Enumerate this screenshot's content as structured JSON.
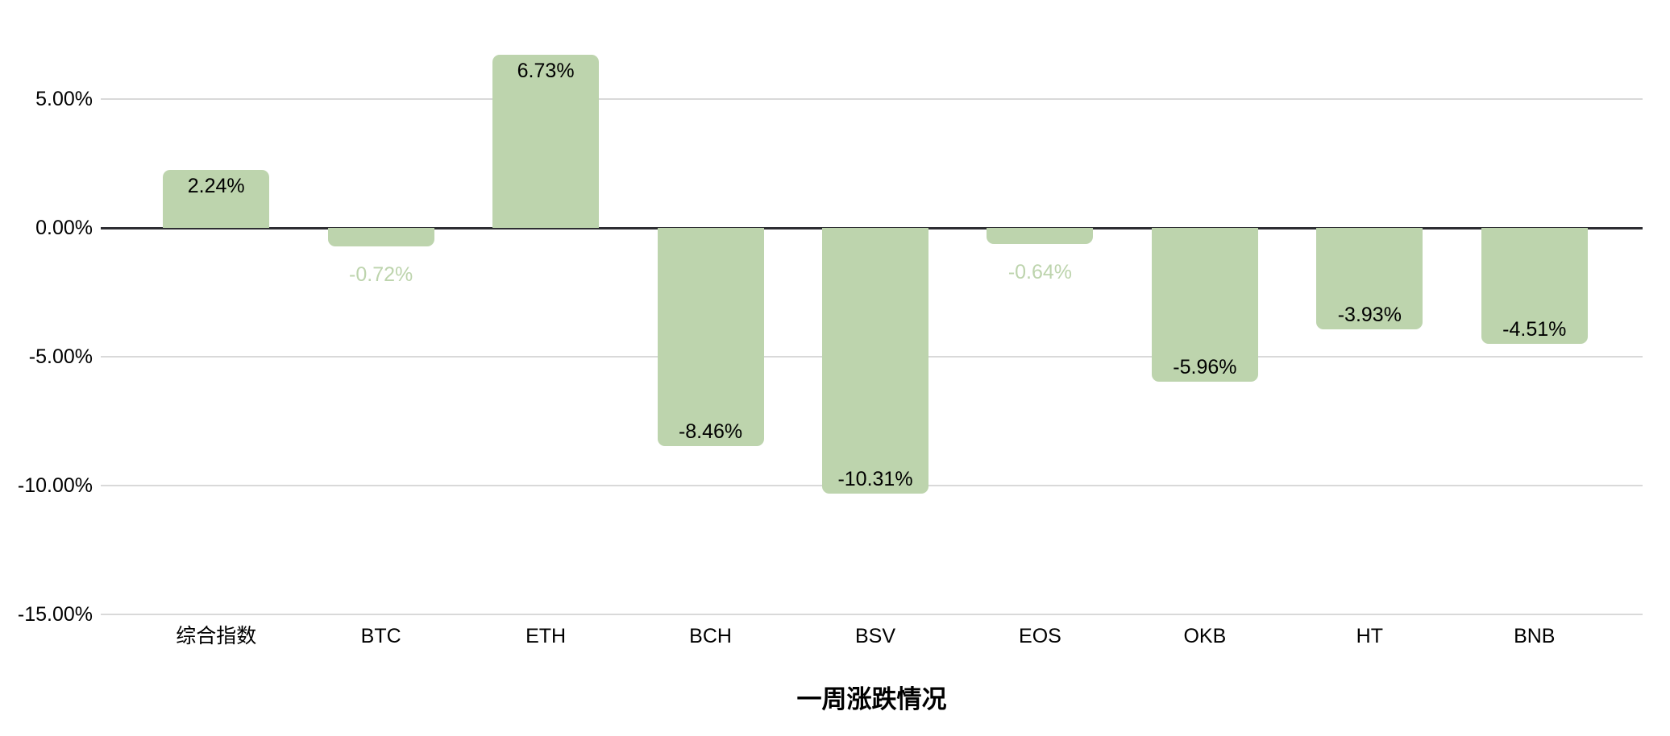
{
  "chart_data": {
    "type": "bar",
    "title": "一周涨跌情况",
    "categories": [
      "综合指数",
      "BTC",
      "ETH",
      "BCH",
      "BSV",
      "EOS",
      "OKB",
      "HT",
      "BNB"
    ],
    "values": [
      2.24,
      -0.72,
      6.73,
      -8.46,
      -10.31,
      -0.64,
      -5.96,
      -3.93,
      -4.51
    ],
    "value_labels": [
      "2.24%",
      "-0.72%",
      "6.73%",
      "-8.46%",
      "-10.31%",
      "-0.64%",
      "-5.96%",
      "-3.93%",
      "-4.51%"
    ],
    "xlabel": "",
    "ylabel": "",
    "y_axis": {
      "ticks": [
        5,
        0,
        -5,
        -10,
        -15
      ],
      "tick_labels": [
        "5.00%",
        "0.00%",
        "-5.00%",
        "-10.00%",
        "-15.00%"
      ],
      "range": [
        -15,
        7.5
      ]
    },
    "grid": true,
    "legend_position": "none",
    "colors": {
      "bar_fill": "#bdd4ad",
      "inside_label": "#000000",
      "outside_label": "#bdd4ad",
      "gridline": "#d9d9d9",
      "zero_line": "#2d2d32",
      "background": "#ffffff"
    }
  }
}
